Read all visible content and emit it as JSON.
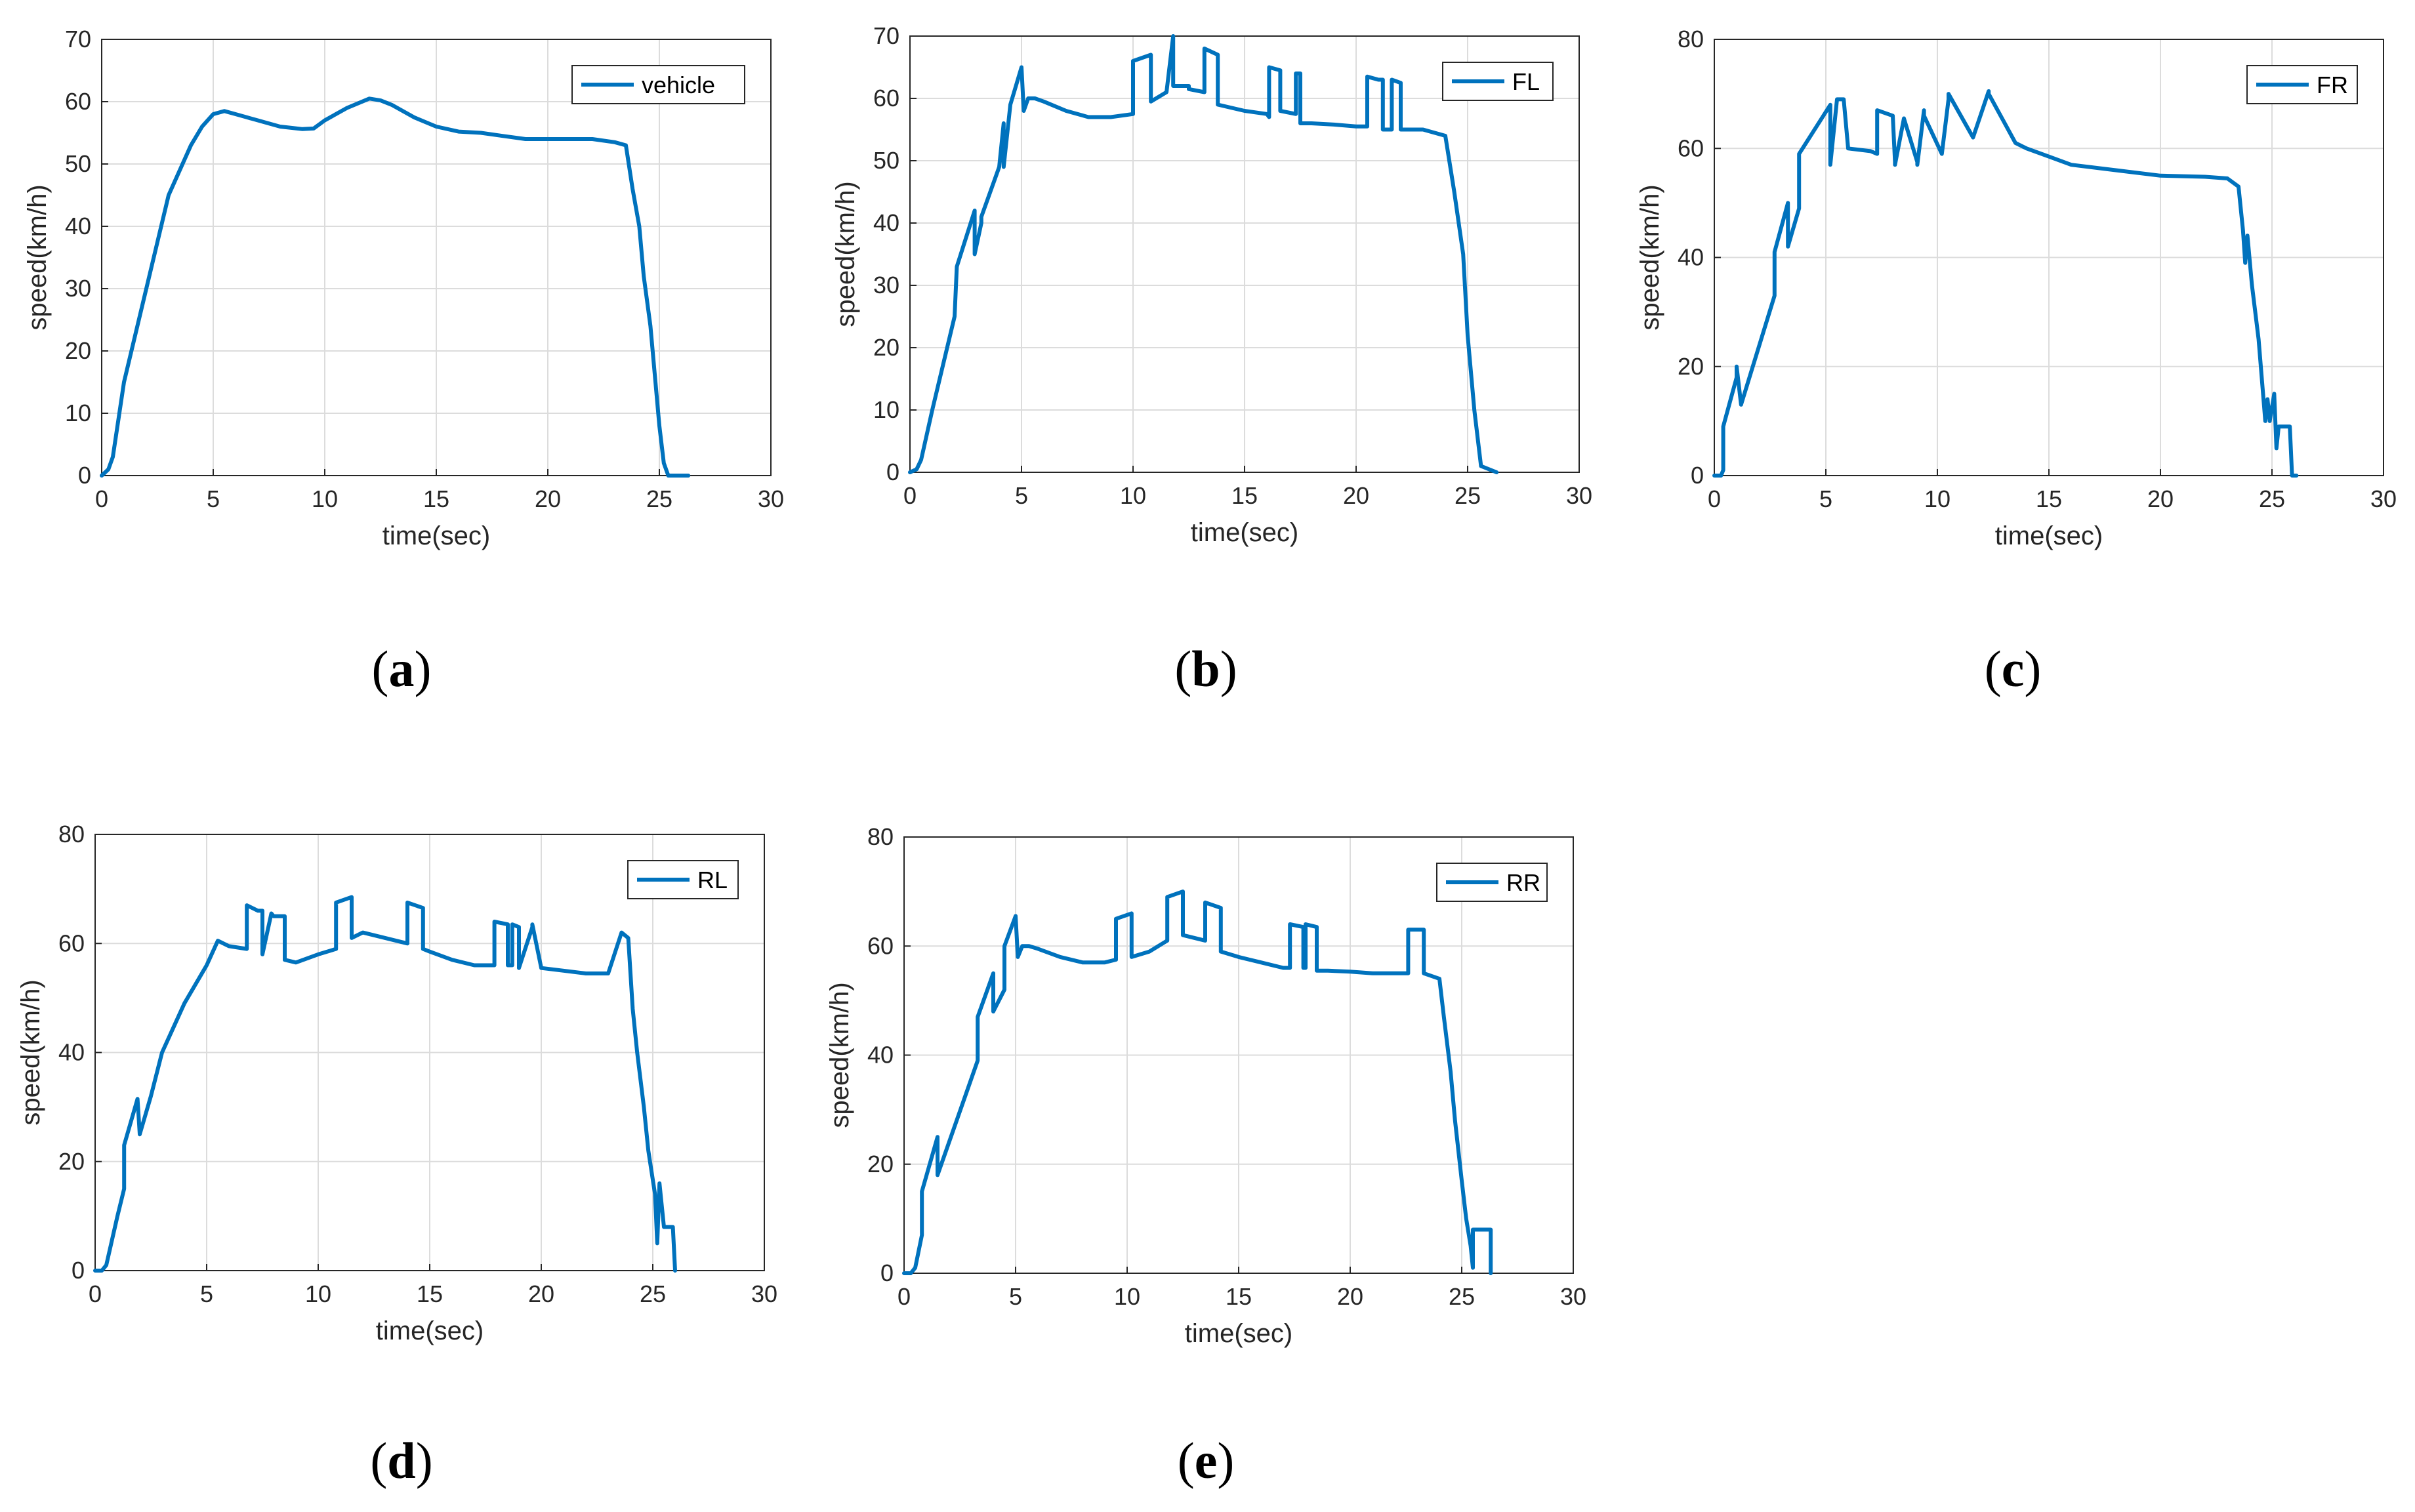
{
  "colors": {
    "series": "#0072BD",
    "axis": "#262626",
    "grid": "#dcdcdc"
  },
  "chart_data": [
    {
      "type": "line",
      "panel": "a",
      "xlabel": "time(sec)",
      "ylabel": "speed(km/h)",
      "xlim": [
        0,
        30
      ],
      "ylim": [
        0,
        70
      ],
      "xticks": [
        0,
        5,
        10,
        15,
        20,
        25,
        30
      ],
      "yticks": [
        0,
        10,
        20,
        30,
        40,
        50,
        60,
        70
      ],
      "legend": "top-right",
      "grid": true,
      "series": [
        {
          "name": "vehicle",
          "x": [
            0,
            0.3,
            0.5,
            1,
            2,
            3,
            4,
            4.5,
            5,
            5.5,
            6,
            6.5,
            7,
            7.5,
            8,
            8.5,
            9,
            9.5,
            10,
            11,
            12,
            12.5,
            13,
            14,
            15,
            16,
            17,
            18,
            19,
            20,
            21,
            22,
            23,
            23.5,
            23.8,
            24.1,
            24.3,
            24.6,
            24.8,
            25,
            25.2,
            25.4,
            25.6,
            26.3
          ],
          "y": [
            0,
            1,
            3,
            15,
            30,
            45,
            53,
            56,
            58,
            58.5,
            58,
            57.5,
            57,
            56.5,
            56,
            55.8,
            55.6,
            55.7,
            57,
            59,
            60.5,
            60.2,
            59.5,
            57.5,
            56,
            55.2,
            55,
            54.5,
            54,
            54,
            54,
            54,
            53.5,
            53,
            46,
            40,
            32,
            24,
            16,
            8,
            2,
            0,
            0,
            0
          ]
        }
      ]
    },
    {
      "type": "line",
      "panel": "b",
      "xlabel": "time(sec)",
      "ylabel": "speed(km/h)",
      "xlim": [
        0,
        30
      ],
      "ylim": [
        0,
        70
      ],
      "xticks": [
        0,
        5,
        10,
        15,
        20,
        25,
        30
      ],
      "yticks": [
        0,
        10,
        20,
        30,
        40,
        50,
        60,
        70
      ],
      "legend": "top-right",
      "grid": true,
      "series": [
        {
          "name": "FL",
          "x": [
            0,
            0.3,
            0.5,
            1,
            2,
            2.1,
            2.9,
            2.9,
            3.2,
            3.2,
            4,
            4.2,
            4.2,
            4.5,
            5,
            5.1,
            5.3,
            5.6,
            6,
            7,
            8,
            9,
            10,
            10,
            10.8,
            10.8,
            11.5,
            11.8,
            11.8,
            12.5,
            12.5,
            13.2,
            13.2,
            13.8,
            13.8,
            15,
            16,
            16.1,
            16.1,
            16.6,
            16.6,
            17.3,
            17.3,
            17.5,
            17.5,
            18,
            19,
            20,
            20.5,
            20.5,
            21,
            21.2,
            21.2,
            21.6,
            21.6,
            22,
            22,
            23,
            24,
            24.4,
            24.8,
            25,
            25.3,
            25.6,
            26.3
          ],
          "y": [
            0,
            0.5,
            2,
            10,
            25,
            33,
            42,
            35,
            40,
            41,
            49,
            56,
            49,
            59,
            65,
            58,
            60,
            60,
            59.5,
            58,
            57,
            57,
            57.5,
            66,
            67,
            59.5,
            61,
            70,
            62,
            62,
            61.5,
            61,
            68,
            67,
            59,
            58,
            57.5,
            57,
            65,
            64.5,
            58,
            57.5,
            64,
            64,
            56,
            56,
            55.8,
            55.5,
            55.5,
            63.5,
            63,
            63,
            55,
            55,
            63,
            62.5,
            55,
            55,
            54,
            45,
            35,
            22,
            10,
            1,
            0
          ]
        }
      ]
    },
    {
      "type": "line",
      "panel": "c",
      "xlabel": "time(sec)",
      "ylabel": "speed(km/h)",
      "xlim": [
        0,
        30
      ],
      "ylim": [
        0,
        80
      ],
      "xticks": [
        0,
        5,
        10,
        15,
        20,
        25,
        30
      ],
      "yticks": [
        0,
        20,
        40,
        60,
        80
      ],
      "legend": "top-right",
      "grid": true,
      "series": [
        {
          "name": "FR",
          "x": [
            0,
            0.3,
            0.4,
            0.4,
            1,
            1,
            1.2,
            2.7,
            2.7,
            3.3,
            3.3,
            3.8,
            3.8,
            5.2,
            5.2,
            5.5,
            5.8,
            6,
            7,
            7.3,
            7.3,
            8,
            8.1,
            8.1,
            8.5,
            8.5,
            9.1,
            9.1,
            9.4,
            9.4,
            10.2,
            10.2,
            10.5,
            10.5,
            11.6,
            11.6,
            12.3,
            12.3,
            13.5,
            13.5,
            14,
            15,
            16,
            18,
            20,
            22,
            23,
            23.5,
            23.7,
            23.8,
            23.9,
            24.1,
            24.4,
            24.6,
            24.7,
            24.8,
            24.9,
            25.1,
            25.2,
            25.3,
            25.5,
            25.8,
            25.9,
            26.1
          ],
          "y": [
            0,
            0,
            1,
            9,
            18,
            20,
            13,
            33,
            41,
            50,
            42,
            49,
            59,
            68,
            57,
            69,
            69,
            60,
            59.5,
            59,
            67,
            66,
            57.5,
            57,
            65.5,
            65.5,
            57.5,
            57,
            67,
            66,
            59,
            59,
            69,
            70,
            62,
            62,
            70.5,
            70,
            61,
            61,
            60,
            58.5,
            57,
            56,
            55,
            54.8,
            54.5,
            53,
            45,
            39,
            44,
            35,
            25,
            15,
            10,
            14,
            10,
            15,
            5,
            9,
            9,
            9,
            0,
            0
          ]
        }
      ]
    },
    {
      "type": "line",
      "panel": "d",
      "xlabel": "time(sec)",
      "ylabel": "speed(km/h)",
      "xlim": [
        0,
        30
      ],
      "ylim": [
        0,
        80
      ],
      "xticks": [
        0,
        5,
        10,
        15,
        20,
        25,
        30
      ],
      "yticks": [
        0,
        20,
        40,
        60,
        80
      ],
      "legend": "top-right",
      "grid": true,
      "series": [
        {
          "name": "RL",
          "x": [
            0,
            0.3,
            0.5,
            1,
            1.3,
            1.3,
            1.9,
            2,
            2.5,
            3,
            4,
            5,
            5.5,
            6,
            6.8,
            6.8,
            7.3,
            7.5,
            7.5,
            7.9,
            8,
            8.5,
            8.5,
            9,
            10,
            10.8,
            10.8,
            11.5,
            11.5,
            12,
            13,
            14,
            14,
            14.7,
            14.7,
            15,
            16,
            17,
            17.9,
            17.9,
            18.5,
            18.5,
            18.7,
            18.7,
            19,
            19,
            19.6,
            19.6,
            20,
            21,
            22,
            23,
            23.6,
            23.9,
            24.1,
            24.3,
            24.6,
            24.8,
            25.1,
            25.2,
            25.3,
            25.5,
            25.9,
            26
          ],
          "y": [
            0,
            0,
            1,
            10,
            15,
            23,
            31.5,
            25,
            32,
            40,
            49,
            56,
            60.5,
            59.5,
            59,
            67,
            66,
            66,
            58,
            65.5,
            65,
            65,
            57,
            56.5,
            58,
            59,
            67.5,
            68.5,
            61,
            62,
            61,
            60,
            67.5,
            66.5,
            59,
            58.5,
            57,
            56,
            56,
            64,
            63.5,
            56,
            56,
            63.5,
            63,
            55.5,
            63,
            63.5,
            55.5,
            55,
            54.5,
            54.5,
            62,
            61,
            48,
            40,
            30,
            22,
            14,
            5,
            16,
            8,
            8,
            0
          ]
        }
      ]
    },
    {
      "type": "line",
      "panel": "e",
      "xlabel": "time(sec)",
      "ylabel": "speed(km/h)",
      "xlim": [
        0,
        30
      ],
      "ylim": [
        0,
        80
      ],
      "xticks": [
        0,
        5,
        10,
        15,
        20,
        25,
        30
      ],
      "yticks": [
        0,
        20,
        40,
        60,
        80
      ],
      "legend": "top-right",
      "grid": true,
      "series": [
        {
          "name": "RR",
          "x": [
            0,
            0.3,
            0.5,
            0.8,
            0.8,
            1.5,
            1.5,
            3.3,
            3.3,
            4,
            4,
            4.5,
            4.5,
            5,
            5.1,
            5.3,
            5.6,
            6,
            7,
            8,
            9,
            9.5,
            9.5,
            10.2,
            10.2,
            11,
            11.8,
            11.8,
            12.5,
            12.5,
            13.5,
            13.5,
            14.2,
            14.2,
            15,
            16,
            17,
            17.3,
            17.3,
            17.9,
            17.9,
            18,
            18,
            18.5,
            18.5,
            19,
            20,
            21,
            22,
            22.6,
            22.6,
            23.3,
            23.3,
            24,
            24.2,
            24.5,
            24.7,
            25,
            25.2,
            25.4,
            25.5,
            25.5,
            26.3,
            26.3
          ],
          "y": [
            0,
            0,
            1,
            7,
            15,
            25,
            18,
            39,
            47,
            55,
            48,
            52,
            60,
            65.5,
            58,
            60,
            60,
            59.5,
            58,
            57,
            57,
            57.5,
            65,
            66,
            58,
            59,
            61,
            69,
            70,
            62,
            61,
            68,
            67,
            59,
            58,
            57,
            56,
            56,
            64,
            63.5,
            56,
            56,
            64,
            63.5,
            55.5,
            55.5,
            55.3,
            55,
            55,
            55,
            63,
            63,
            55,
            54,
            47,
            37,
            28,
            17,
            10,
            5,
            1,
            8,
            8,
            0
          ]
        }
      ]
    }
  ],
  "panel_labels": {
    "a": {
      "open": "(",
      "letter": "a",
      "close": ")"
    },
    "b": {
      "open": "(",
      "letter": "b",
      "close": ")"
    },
    "c": {
      "open": "(",
      "letter": "c",
      "close": ")"
    },
    "d": {
      "open": "(",
      "letter": "d",
      "close": ")"
    },
    "e": {
      "open": "(",
      "letter": "e",
      "close": ")"
    }
  }
}
